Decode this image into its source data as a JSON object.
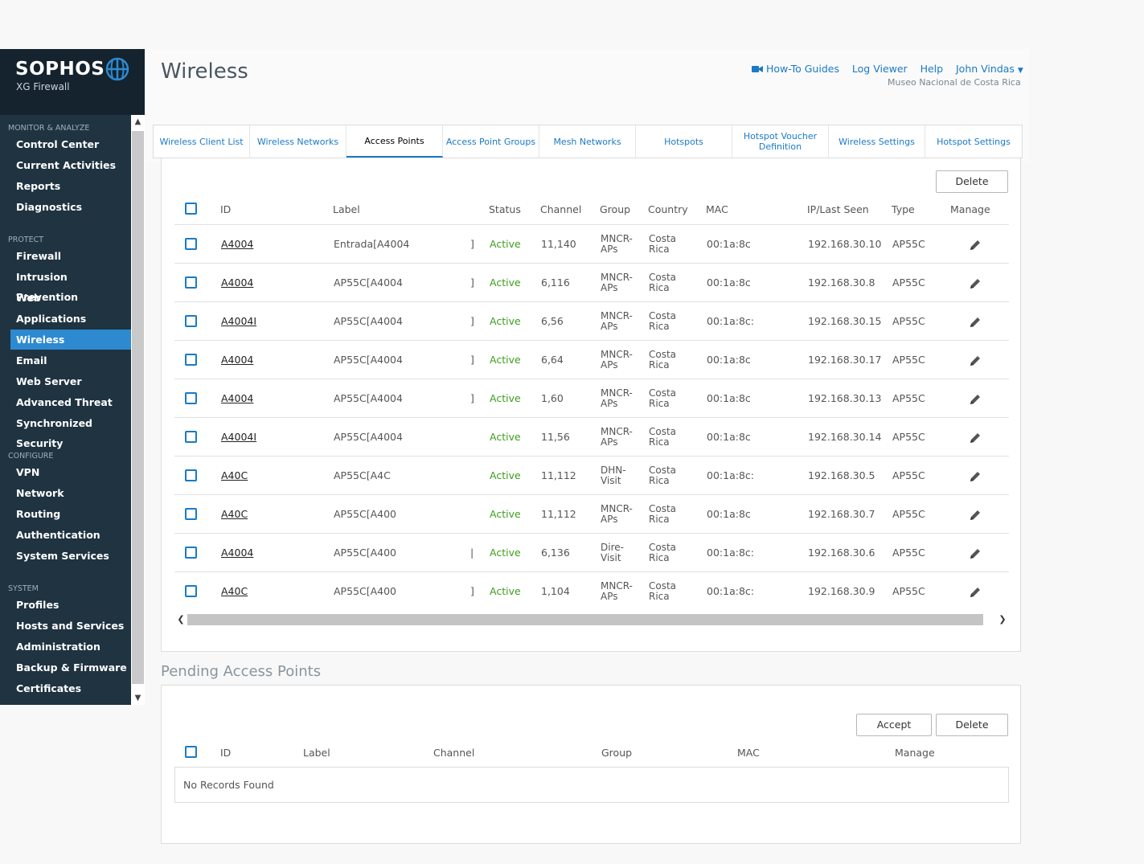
{
  "brand": {
    "name": "SOPHOS",
    "product": "XG Firewall"
  },
  "sidebar": {
    "sections": [
      {
        "title": "MONITOR & ANALYZE",
        "items": [
          "Control Center",
          "Current Activities",
          "Reports",
          "Diagnostics"
        ]
      },
      {
        "title": "PROTECT",
        "items": [
          "Firewall",
          "Intrusion Prevention",
          "Web",
          "Applications",
          "Wireless",
          "Email",
          "Web Server",
          "Advanced Threat",
          "Synchronized Security"
        ]
      },
      {
        "title": "CONFIGURE",
        "items": [
          "VPN",
          "Network",
          "Routing",
          "Authentication",
          "System Services"
        ]
      },
      {
        "title": "SYSTEM",
        "items": [
          "Profiles",
          "Hosts and Services",
          "Administration",
          "Backup & Firmware",
          "Certificates"
        ]
      }
    ],
    "active_item": "Wireless"
  },
  "header": {
    "title": "Wireless",
    "links": {
      "guides": "How-To Guides",
      "log_viewer": "Log Viewer",
      "help": "Help",
      "user": "John Vindas"
    },
    "org": "Museo Nacional de Costa Rica"
  },
  "tabs": [
    "Wireless Client List",
    "Wireless Networks",
    "Access Points",
    "Access Point Groups",
    "Mesh Networks",
    "Hotspots",
    "Hotspot Voucher Definition",
    "Wireless Settings",
    "Hotspot Settings"
  ],
  "active_tab": "Access Points",
  "access_points": {
    "delete_label": "Delete",
    "columns": {
      "id": "ID",
      "label": "Label",
      "status": "Status",
      "channel": "Channel",
      "group": "Group",
      "country": "Country",
      "mac": "MAC",
      "ip": "IP/Last Seen",
      "type": "Type",
      "manage": "Manage"
    },
    "rows": [
      {
        "id": "A4004",
        "label": "Entrada[A4004",
        "suffix": "]",
        "status": "Active",
        "channel": "11,140",
        "group": "MNCR-APs",
        "country": "Costa Rica",
        "mac": "00:1a:8c",
        "ip": "192.168.30.10",
        "type": "AP55C"
      },
      {
        "id": "A4004",
        "label": "AP55C[A4004",
        "suffix": "]",
        "status": "Active",
        "channel": "6,116",
        "group": "MNCR-APs",
        "country": "Costa Rica",
        "mac": "00:1a:8c",
        "ip": "192.168.30.8",
        "type": "AP55C"
      },
      {
        "id": "A4004I",
        "label": "AP55C[A4004",
        "suffix": "]",
        "status": "Active",
        "channel": "6,56",
        "group": "MNCR-APs",
        "country": "Costa Rica",
        "mac": "00:1a:8c:",
        "ip": "192.168.30.15",
        "type": "AP55C"
      },
      {
        "id": "A4004",
        "label": "AP55C[A4004",
        "suffix": "]",
        "status": "Active",
        "channel": "6,64",
        "group": "MNCR-APs",
        "country": "Costa Rica",
        "mac": "00:1a:8c",
        "ip": "192.168.30.17",
        "type": "AP55C"
      },
      {
        "id": "A4004",
        "label": "AP55C[A4004",
        "suffix": "]",
        "status": "Active",
        "channel": "1,60",
        "group": "MNCR-APs",
        "country": "Costa Rica",
        "mac": "00:1a:8c",
        "ip": "192.168.30.13",
        "type": "AP55C"
      },
      {
        "id": "A4004I",
        "label": "AP55C[A4004",
        "suffix": "",
        "status": "Active",
        "channel": "11,56",
        "group": "MNCR-APs",
        "country": "Costa Rica",
        "mac": "00:1a:8c",
        "ip": "192.168.30.14",
        "type": "AP55C"
      },
      {
        "id": "A40C",
        "label": "AP55C[A4C",
        "suffix": "",
        "status": "Active",
        "channel": "11,112",
        "group": "DHN-Visit",
        "country": "Costa Rica",
        "mac": "00:1a:8c:",
        "ip": "192.168.30.5",
        "type": "AP55C"
      },
      {
        "id": "A40C",
        "label": "AP55C[A400",
        "suffix": "",
        "status": "Active",
        "channel": "11,112",
        "group": "MNCR-APs",
        "country": "Costa Rica",
        "mac": "00:1a:8c",
        "ip": "192.168.30.7",
        "type": "AP55C"
      },
      {
        "id": "A4004",
        "label": "AP55C[A400",
        "suffix": "|",
        "status": "Active",
        "channel": "6,136",
        "group": "Dire-Visit",
        "country": "Costa Rica",
        "mac": "00:1a:8c:",
        "ip": "192.168.30.6",
        "type": "AP55C"
      },
      {
        "id": "A40C",
        "label": "AP55C[A400",
        "suffix": "]",
        "status": "Active",
        "channel": "1,104",
        "group": "MNCR-APs",
        "country": "Costa Rica",
        "mac": "00:1a:8c:",
        "ip": "192.168.30.9",
        "type": "AP55C"
      }
    ]
  },
  "pending": {
    "title": "Pending Access Points",
    "accept_label": "Accept",
    "delete_label": "Delete",
    "columns": {
      "id": "ID",
      "label": "Label",
      "channel": "Channel",
      "group": "Group",
      "mac": "MAC",
      "manage": "Manage"
    },
    "empty": "No Records Found"
  },
  "colors": {
    "sidebar": "#1f3341",
    "accent": "#1a7ac6",
    "active_status": "#3c9d1c"
  }
}
